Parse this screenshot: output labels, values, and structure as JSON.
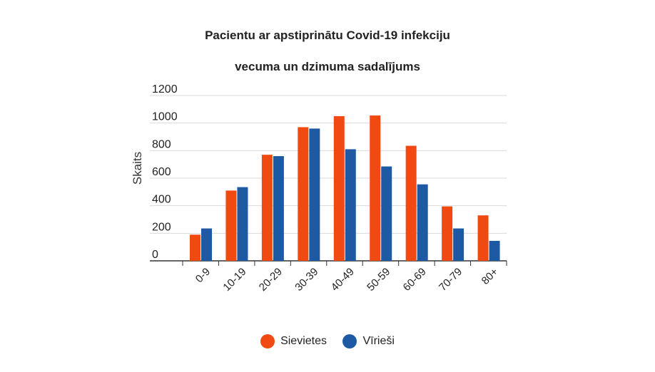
{
  "chart_data": {
    "type": "bar",
    "title_line1": "Pacientu ar apstiprinātu Covid-19 infekciju",
    "title_line2": "vecuma un dzimuma sadalījums",
    "ylabel": "Skaits",
    "xlabel": "",
    "ylim": [
      0,
      1200
    ],
    "yticks": [
      "0",
      "200",
      "400",
      "600",
      "800",
      "1000",
      "1200"
    ],
    "categories": [
      "0-9",
      "10-19",
      "20-29",
      "30-39",
      "40-49",
      "50-59",
      "60-69",
      "70-79",
      "80+"
    ],
    "series": [
      {
        "name": "Sievietes",
        "color": "#f04a12",
        "values": [
          190,
          510,
          770,
          970,
          1050,
          1055,
          835,
          395,
          330
        ]
      },
      {
        "name": "Vīrieši",
        "color": "#1d5aa3",
        "values": [
          235,
          535,
          760,
          960,
          810,
          685,
          555,
          235,
          145
        ]
      }
    ],
    "grid": true,
    "legend_position": "bottom"
  }
}
